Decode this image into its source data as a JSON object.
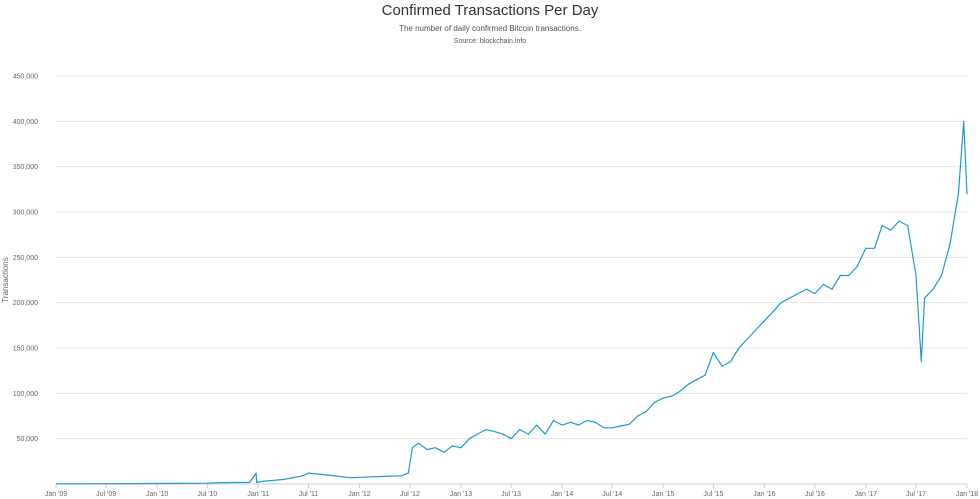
{
  "chart_data": {
    "type": "line",
    "title": "Confirmed Transactions Per Day",
    "subtitle": "The number of daily confirmed Bitcoin transactions.",
    "source": "Source: blockchain.info",
    "xlabel": "",
    "ylabel": "Transactions",
    "ylim": [
      0,
      450000
    ],
    "grid": true,
    "line_color": "#1a9bd1",
    "y_ticks": [
      {
        "value": 50000,
        "label": "50,000"
      },
      {
        "value": 100000,
        "label": "100,000"
      },
      {
        "value": 150000,
        "label": "150,000"
      },
      {
        "value": 200000,
        "label": "200,000"
      },
      {
        "value": 250000,
        "label": "250,000"
      },
      {
        "value": 300000,
        "label": "300,000"
      },
      {
        "value": 350000,
        "label": "350,000"
      },
      {
        "value": 400000,
        "label": "400,000"
      },
      {
        "value": 450000,
        "label": "450,000"
      }
    ],
    "x_ticks": [
      {
        "date": "2009-01-01",
        "label": "Jan '09"
      },
      {
        "date": "2009-07-01",
        "label": "Jul '09"
      },
      {
        "date": "2010-01-01",
        "label": "Jan '10"
      },
      {
        "date": "2010-07-01",
        "label": "Jul '10"
      },
      {
        "date": "2011-01-01",
        "label": "Jan '11"
      },
      {
        "date": "2011-07-01",
        "label": "Jul '11"
      },
      {
        "date": "2012-01-01",
        "label": "Jan '12"
      },
      {
        "date": "2012-07-01",
        "label": "Jul '12"
      },
      {
        "date": "2013-01-01",
        "label": "Jan '13"
      },
      {
        "date": "2013-07-01",
        "label": "Jul '13"
      },
      {
        "date": "2014-01-01",
        "label": "Jan '14"
      },
      {
        "date": "2014-07-01",
        "label": "Jul '14"
      },
      {
        "date": "2015-01-01",
        "label": "Jan '15"
      },
      {
        "date": "2015-07-01",
        "label": "Jul '15"
      },
      {
        "date": "2016-01-01",
        "label": "Jan '16"
      },
      {
        "date": "2016-07-01",
        "label": "Jul '16"
      },
      {
        "date": "2017-01-01",
        "label": "Jan '17"
      },
      {
        "date": "2017-07-01",
        "label": "Jul '17"
      },
      {
        "date": "2018-01-01",
        "label": "Jan '18"
      }
    ],
    "x_start": "2009-01-01",
    "x_end": "2018-01-01",
    "series": [
      {
        "x": [
          "2009-01-03",
          "2009-07-01",
          "2010-01-01",
          "2010-07-01",
          "2010-09-01",
          "2010-12-01",
          "2010-12-24",
          "2010-12-26",
          "2011-01-15",
          "2011-04-01",
          "2011-06-10",
          "2011-07-01",
          "2011-09-01",
          "2011-12-01",
          "2012-03-01",
          "2012-06-01",
          "2012-06-25",
          "2012-07-10",
          "2012-08-01",
          "2012-09-01",
          "2012-10-01",
          "2012-11-01",
          "2012-12-01",
          "2013-01-01",
          "2013-02-01",
          "2013-03-01",
          "2013-04-01",
          "2013-05-01",
          "2013-06-01",
          "2013-07-01",
          "2013-08-01",
          "2013-09-01",
          "2013-10-01",
          "2013-11-01",
          "2013-12-01",
          "2014-01-01",
          "2014-02-01",
          "2014-03-01",
          "2014-04-01",
          "2014-05-01",
          "2014-06-01",
          "2014-07-01",
          "2014-08-01",
          "2014-09-01",
          "2014-10-01",
          "2014-11-01",
          "2014-12-01",
          "2015-01-01",
          "2015-02-01",
          "2015-03-01",
          "2015-04-01",
          "2015-05-01",
          "2015-06-01",
          "2015-07-01",
          "2015-08-01",
          "2015-09-01",
          "2015-10-01",
          "2015-11-01",
          "2015-12-01",
          "2016-01-01",
          "2016-02-01",
          "2016-03-01",
          "2016-04-01",
          "2016-05-01",
          "2016-06-01",
          "2016-07-01",
          "2016-08-01",
          "2016-09-01",
          "2016-10-01",
          "2016-11-01",
          "2016-12-01",
          "2017-01-01",
          "2017-02-01",
          "2017-03-01",
          "2017-04-01",
          "2017-05-01",
          "2017-06-01",
          "2017-07-01",
          "2017-07-20",
          "2017-08-01",
          "2017-09-01",
          "2017-10-01",
          "2017-11-01",
          "2017-12-01",
          "2017-12-20",
          "2018-01-01"
        ],
        "y": [
          100,
          300,
          600,
          900,
          1500,
          1800,
          12000,
          1800,
          3000,
          5000,
          9000,
          12000,
          10000,
          7000,
          8000,
          9000,
          12000,
          40000,
          45000,
          38000,
          40000,
          35000,
          42000,
          40000,
          50000,
          55000,
          60000,
          58000,
          55000,
          50000,
          60000,
          55000,
          65000,
          55000,
          70000,
          65000,
          68000,
          65000,
          70000,
          68000,
          62000,
          62000,
          64000,
          66000,
          75000,
          80000,
          90000,
          95000,
          97000,
          102000,
          110000,
          115000,
          120000,
          145000,
          130000,
          135000,
          150000,
          160000,
          170000,
          180000,
          190000,
          200000,
          205000,
          210000,
          215000,
          210000,
          220000,
          215000,
          230000,
          230000,
          240000,
          260000,
          260000,
          285000,
          280000,
          290000,
          285000,
          230000,
          135000,
          205000,
          215000,
          230000,
          265000,
          320000,
          400000,
          320000
        ]
      }
    ]
  }
}
